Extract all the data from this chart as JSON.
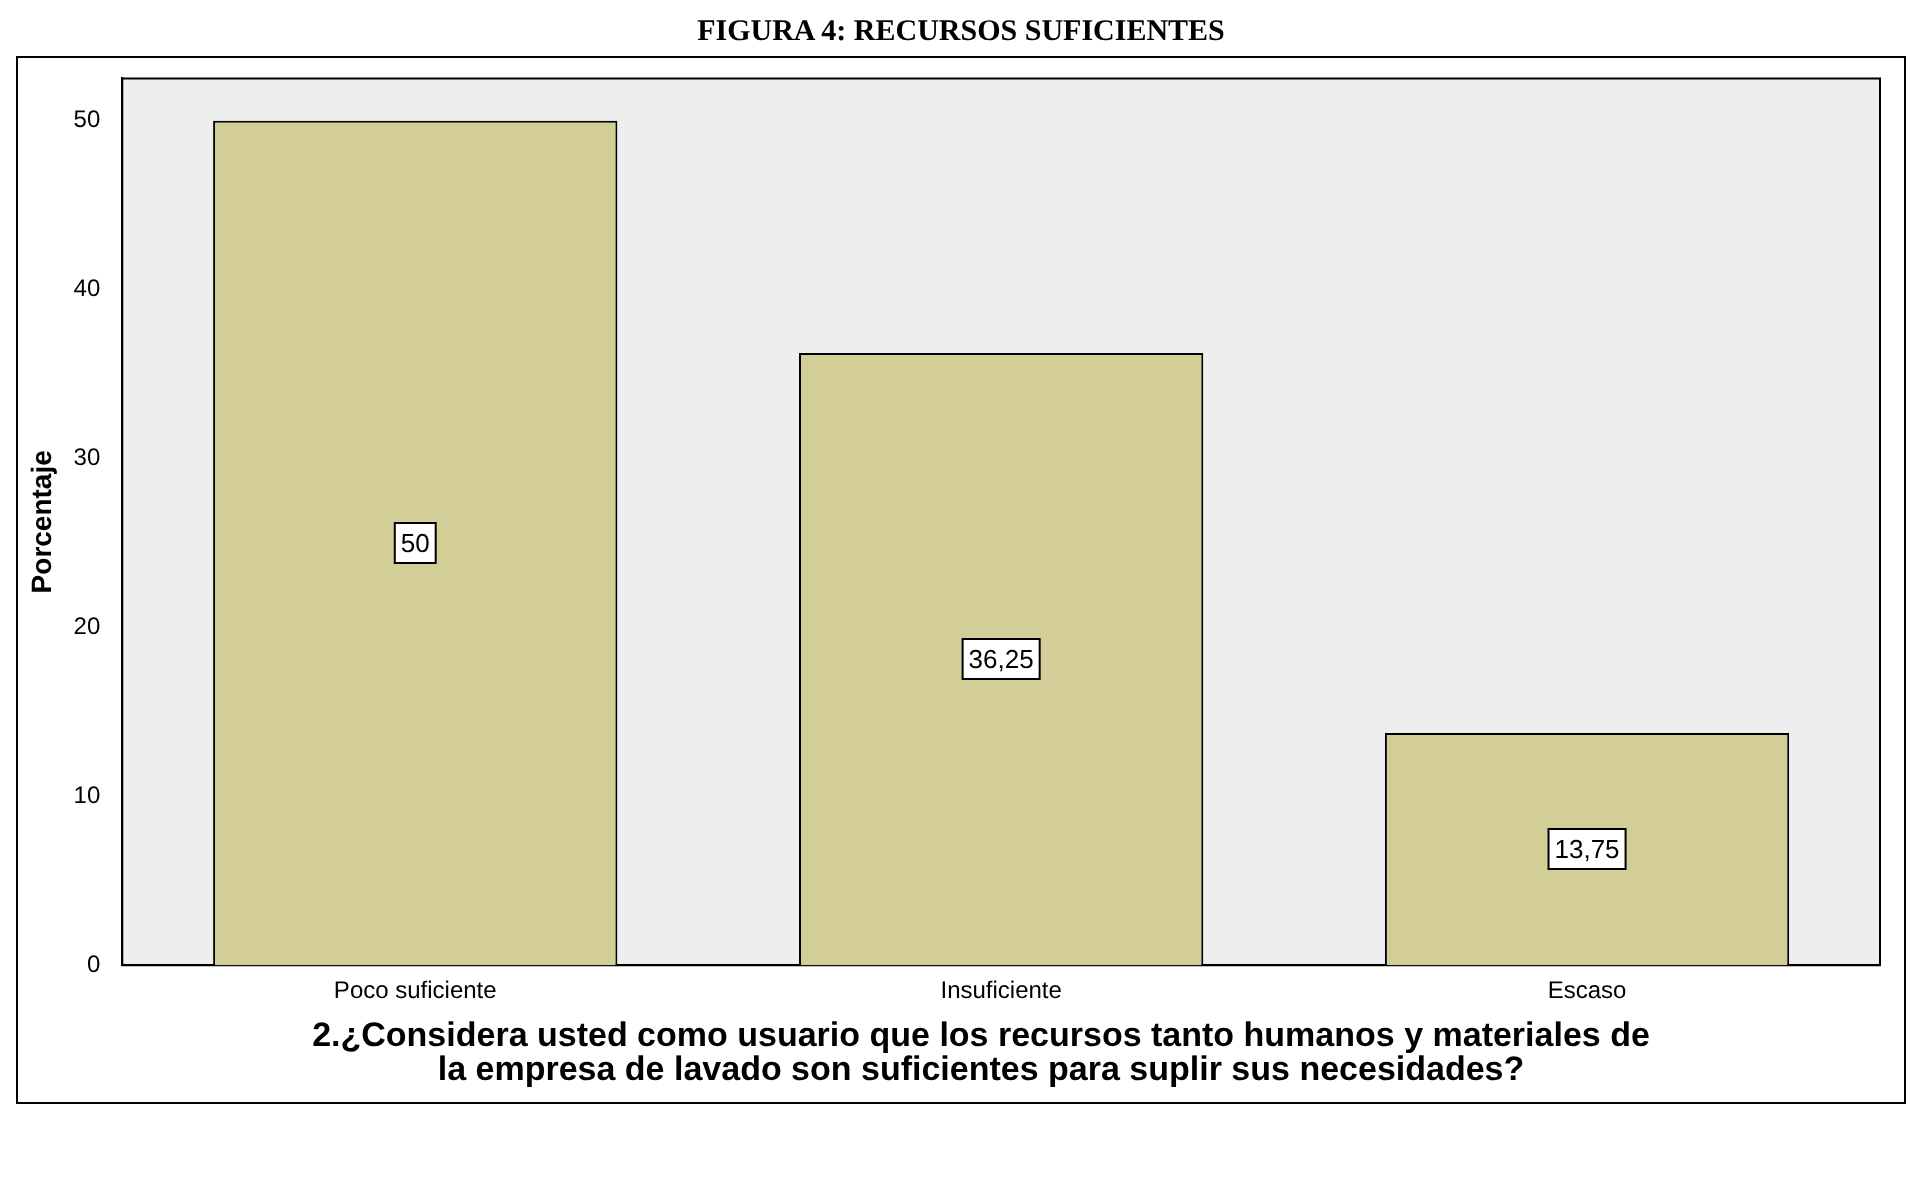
{
  "chart_data": {
    "type": "bar",
    "title": "FIGURA 4: RECURSOS SUFICIENTES",
    "xlabel": "2.¿Considera usted  como usuario que los recursos tanto humanos y materiales de la empresa de lavado son suficientes para suplir sus necesidades?",
    "ylabel": "Porcentaje",
    "categories": [
      "Poco suficiente",
      "Insuficiente",
      "Escaso"
    ],
    "values": [
      50,
      36.25,
      13.75
    ],
    "value_labels": [
      "50",
      "36,25",
      "13,75"
    ],
    "color": "#d3ce98",
    "ylim": [
      0,
      52.5
    ],
    "yticks": [
      0,
      10,
      20,
      30,
      40,
      50
    ],
    "grid": false,
    "legend": false
  }
}
